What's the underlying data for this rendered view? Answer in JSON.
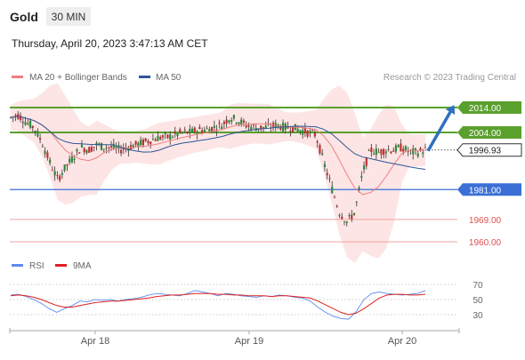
{
  "header": {
    "symbol": "Gold",
    "timeframe": "30 MIN",
    "timestamp": "Thursday, April 20, 2023 3:47:13 AM CET",
    "credit": "Research © 2023 Trading Central"
  },
  "legend": [
    {
      "label": "MA 20 + Bollinger Bands",
      "color": "#f08080"
    },
    {
      "label": "MA 50",
      "color": "#2f5597"
    }
  ],
  "rsi_legend": [
    {
      "label": "RSI",
      "color": "#5b8def"
    },
    {
      "label": "9MA",
      "color": "#e02020"
    }
  ],
  "colors": {
    "resistance": "#5aa02c",
    "support_blue": "#3b6fd6",
    "support_red": "#e05050",
    "arrow": "#2f6fc0",
    "candle_up": "#2e8b3a",
    "candle_down": "#c03030",
    "band_fill": "#fde0e0"
  },
  "chart_data": [
    {
      "type": "candlestick",
      "title": "Gold",
      "timeframe": "30 MIN",
      "x_ticks": [
        "Apr 18",
        "Apr 19",
        "Apr 20"
      ],
      "current_price": {
        "value": 1996.93,
        "label": "1996.93"
      },
      "levels": [
        {
          "value": 2014.0,
          "label": "2014.00",
          "kind": "resistance"
        },
        {
          "value": 2004.0,
          "label": "2004.00",
          "kind": "resistance"
        },
        {
          "value": 1981.0,
          "label": "1981.00",
          "kind": "support"
        },
        {
          "value": 1969.0,
          "label": "1969.00",
          "kind": "support-minor"
        },
        {
          "value": 1960.0,
          "label": "1960.00",
          "kind": "support-minor"
        }
      ],
      "forecast_arrow": {
        "from": 1996.93,
        "to": 2014.0,
        "direction": "up"
      },
      "price_path": [
        2010,
        2011,
        2008,
        2006,
        2000,
        1992,
        1985,
        1990,
        1994,
        1998,
        1997,
        1999,
        1998,
        1998,
        1997,
        1998,
        1999,
        2000,
        2001,
        2002,
        2002,
        2003,
        2004,
        2004,
        2005,
        2005,
        2006,
        2007,
        2010,
        2009,
        2007,
        2006,
        2006,
        2006,
        2007,
        2006,
        2006,
        2005,
        2004,
        2003,
        1992,
        1982,
        1972,
        1968,
        1972,
        1988,
        1997,
        1996,
        1997,
        1997,
        1998,
        1996,
        1996,
        1997
      ]
    },
    {
      "type": "line",
      "title": "RSI",
      "y_ticks": [
        70,
        50,
        30
      ],
      "ylim": [
        20,
        80
      ],
      "series": [
        {
          "name": "RSI",
          "values": [
            56,
            57,
            54,
            50,
            45,
            38,
            33,
            38,
            42,
            48,
            47,
            50,
            49,
            50,
            48,
            50,
            51,
            53,
            56,
            58,
            57,
            56,
            55,
            58,
            62,
            60,
            58,
            55,
            58,
            57,
            55,
            54,
            53,
            55,
            54,
            56,
            55,
            53,
            52,
            48,
            40,
            33,
            28,
            25,
            24,
            34,
            50,
            58,
            60,
            58,
            57,
            56,
            57,
            58,
            62
          ]
        },
        {
          "name": "9MA",
          "values": [
            55,
            56,
            55,
            53,
            50,
            46,
            42,
            40,
            40,
            42,
            44,
            46,
            47,
            48,
            48,
            49,
            50,
            51,
            52,
            54,
            55,
            56,
            56,
            57,
            58,
            58,
            58,
            57,
            57,
            56,
            56,
            55,
            55,
            55,
            54,
            55,
            55,
            54,
            53,
            52,
            48,
            43,
            38,
            33,
            30,
            32,
            38,
            45,
            52,
            56,
            57,
            57,
            56,
            56,
            57
          ]
        }
      ]
    }
  ]
}
